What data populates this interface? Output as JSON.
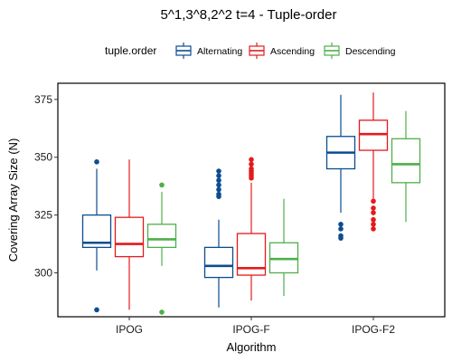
{
  "chart_data": {
    "type": "box",
    "title": "5^1,3^8,2^2 t=4 - Tuple-order",
    "xlabel": "Algorithm",
    "ylabel": "Covering Array Size (N)",
    "ylim": [
      281,
      382
    ],
    "yticks": [
      300,
      325,
      350,
      375
    ],
    "categories": [
      "IPOG",
      "IPOG-F",
      "IPOG-F2"
    ],
    "legend": {
      "title": "tuple.order",
      "position": "top"
    },
    "series": [
      {
        "name": "Alternating",
        "color": "#0b4d92",
        "boxes": [
          {
            "min": 301,
            "q1": 311,
            "median": 313,
            "q3": 325,
            "max": 345,
            "outliers": [
              348,
              284
            ]
          },
          {
            "min": 285,
            "q1": 298,
            "median": 303,
            "q3": 311,
            "max": 323,
            "outliers": [
              344,
              342,
              340,
              338,
              336,
              334,
              333
            ]
          },
          {
            "min": 326,
            "q1": 345,
            "median": 352,
            "q3": 359,
            "max": 377,
            "outliers": [
              321,
              319,
              316,
              315
            ]
          }
        ]
      },
      {
        "name": "Ascending",
        "color": "#e41a1c",
        "boxes": [
          {
            "min": 284,
            "q1": 307,
            "median": 312.5,
            "q3": 324,
            "max": 349,
            "outliers": []
          },
          {
            "min": 288,
            "q1": 299,
            "median": 302,
            "q3": 317,
            "max": 339,
            "outliers": [
              349,
              347,
              345,
              344,
              343,
              342,
              341
            ]
          },
          {
            "min": 332,
            "q1": 353,
            "median": 360,
            "q3": 366,
            "max": 378,
            "outliers": [
              331,
              328,
              326,
              323,
              321,
              319
            ]
          }
        ]
      },
      {
        "name": "Descending",
        "color": "#4daf4a",
        "boxes": [
          {
            "min": 303,
            "q1": 311,
            "median": 314.5,
            "q3": 321,
            "max": 335,
            "outliers": [
              338,
              283
            ]
          },
          {
            "min": 290,
            "q1": 300,
            "median": 306,
            "q3": 313,
            "max": 332,
            "outliers": []
          },
          {
            "min": 322,
            "q1": 339,
            "median": 347,
            "q3": 358,
            "max": 370,
            "outliers": []
          }
        ]
      }
    ]
  }
}
